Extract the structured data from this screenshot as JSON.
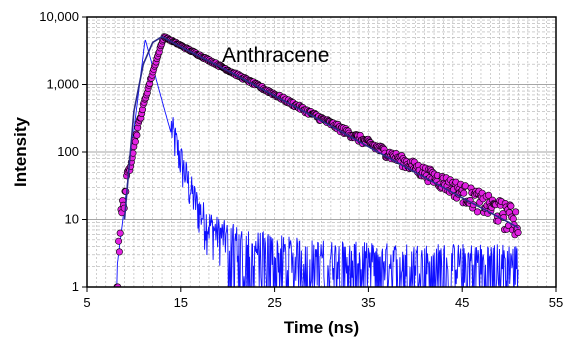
{
  "chart_data": {
    "type": "scatter",
    "title": "",
    "annotation": "Anthracene",
    "xlabel": "Time (ns)",
    "ylabel": "Intensity",
    "xlim": [
      5,
      55
    ],
    "ylim": [
      1,
      10000
    ],
    "y_scale": "log",
    "x_ticks": [
      5,
      15,
      25,
      35,
      45,
      55
    ],
    "y_ticks": [
      {
        "value": 1,
        "label": "1"
      },
      {
        "value": 10,
        "label": "10"
      },
      {
        "value": 100,
        "label": "100"
      },
      {
        "value": 1000,
        "label": "1,000"
      },
      {
        "value": 10000,
        "label": "10,000"
      }
    ],
    "grid": true,
    "legend": "none",
    "colors": {
      "measured_points": "#e020e0",
      "measured_outline": "#000000",
      "fit_curve": "#2a2a8a",
      "instrument_response": "#1010ff",
      "grid": "#b0b0b0"
    },
    "series": [
      {
        "role": "instrument_response",
        "style": "line",
        "peak_x": 11.2,
        "peak_y": 4700,
        "onset_x": 8.2,
        "baseline_y": 2
      },
      {
        "role": "measured_decay",
        "style": "points",
        "peak_x": 13.2,
        "peak_y": 5100,
        "onset_x": 8.2,
        "end_x": 51,
        "tail_y_at_end": 3
      },
      {
        "role": "fit",
        "style": "line",
        "peak_x": 13.2,
        "peak_y": 5100,
        "points": [
          [
            9,
            10
          ],
          [
            10,
            400
          ],
          [
            11,
            2000
          ],
          [
            12,
            4200
          ],
          [
            13,
            5100
          ],
          [
            15,
            3600
          ],
          [
            20,
            1600
          ],
          [
            25,
            680
          ],
          [
            30,
            290
          ],
          [
            35,
            120
          ],
          [
            40,
            50
          ],
          [
            45,
            21
          ],
          [
            50,
            9
          ],
          [
            51,
            7.5
          ]
        ]
      }
    ]
  }
}
